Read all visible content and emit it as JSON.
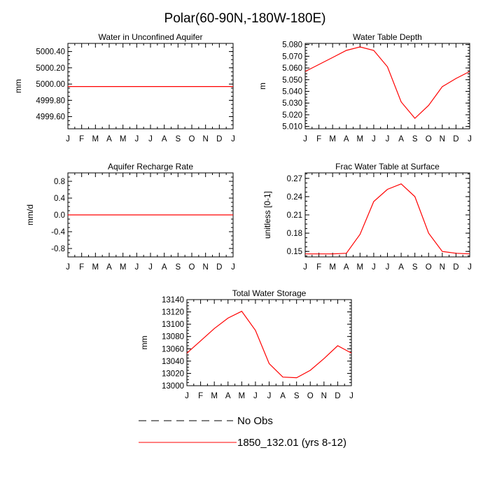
{
  "figure": {
    "title": "Polar(60-90N,-180W-180E)"
  },
  "months": [
    "J",
    "F",
    "M",
    "A",
    "M",
    "J",
    "J",
    "A",
    "S",
    "O",
    "N",
    "D",
    "J"
  ],
  "colors": {
    "model": "#ff0000",
    "obs": "#000000",
    "axis": "#000000"
  },
  "chart_data": [
    {
      "type": "line",
      "title": "Water in Unconfined Aquifer",
      "xlabel": "",
      "ylabel": "mm",
      "ylim": [
        4999.45,
        5000.5
      ],
      "yticks": [
        4999.6,
        4999.8,
        5000.0,
        5000.2,
        5000.4
      ],
      "ytick_labels": [
        "4999.60",
        "4999.80",
        "5000.00",
        "5000.20",
        "5000.40"
      ],
      "categories": [
        "J",
        "F",
        "M",
        "A",
        "M",
        "J",
        "J",
        "A",
        "S",
        "O",
        "N",
        "D",
        "J"
      ],
      "series": [
        {
          "name": "1850_132.01 (yrs 8-12)",
          "values": [
            4999.97,
            4999.97,
            4999.97,
            4999.97,
            4999.97,
            4999.97,
            4999.97,
            4999.97,
            4999.97,
            4999.97,
            4999.97,
            4999.97,
            4999.97
          ]
        }
      ]
    },
    {
      "type": "line",
      "title": "Water Table Depth",
      "xlabel": "",
      "ylabel": "m",
      "ylim": [
        5.008,
        5.081
      ],
      "yticks": [
        5.01,
        5.02,
        5.03,
        5.04,
        5.05,
        5.06,
        5.07,
        5.08
      ],
      "ytick_labels": [
        "5.010",
        "5.020",
        "5.030",
        "5.040",
        "5.050",
        "5.060",
        "5.070",
        "5.080"
      ],
      "categories": [
        "J",
        "F",
        "M",
        "A",
        "M",
        "J",
        "J",
        "A",
        "S",
        "O",
        "N",
        "D",
        "J"
      ],
      "series": [
        {
          "name": "1850_132.01 (yrs 8-12)",
          "values": [
            5.057,
            5.063,
            5.069,
            5.075,
            5.078,
            5.075,
            5.061,
            5.031,
            5.017,
            5.028,
            5.044,
            5.051,
            5.057
          ]
        }
      ]
    },
    {
      "type": "line",
      "title": "Aquifer Recharge Rate",
      "xlabel": "",
      "ylabel": "mm/d",
      "ylim": [
        -1.0,
        1.0
      ],
      "yticks": [
        -0.8,
        -0.4,
        0.0,
        0.4,
        0.8
      ],
      "ytick_labels": [
        "-0.8",
        "-0.4",
        "0.0",
        "0.4",
        "0.8"
      ],
      "categories": [
        "J",
        "F",
        "M",
        "A",
        "M",
        "J",
        "J",
        "A",
        "S",
        "O",
        "N",
        "D",
        "J"
      ],
      "series": [
        {
          "name": "1850_132.01 (yrs 8-12)",
          "values": [
            0,
            0,
            0,
            0,
            0,
            0,
            0,
            0,
            0,
            0,
            0,
            0,
            0
          ]
        }
      ]
    },
    {
      "type": "line",
      "title": "Frac Water Table at Surface",
      "xlabel": "",
      "ylabel": "unitless [0-1]",
      "ylim": [
        0.141,
        0.279
      ],
      "yticks": [
        0.15,
        0.18,
        0.21,
        0.24,
        0.27
      ],
      "ytick_labels": [
        "0.15",
        "0.18",
        "0.21",
        "0.24",
        "0.27"
      ],
      "categories": [
        "J",
        "F",
        "M",
        "A",
        "M",
        "J",
        "J",
        "A",
        "S",
        "O",
        "N",
        "D",
        "J"
      ],
      "series": [
        {
          "name": "1850_132.01 (yrs 8-12)",
          "values": [
            0.146,
            0.146,
            0.146,
            0.147,
            0.178,
            0.232,
            0.252,
            0.261,
            0.24,
            0.18,
            0.15,
            0.147,
            0.146
          ]
        }
      ]
    },
    {
      "type": "line",
      "title": "Total Water Storage",
      "xlabel": "",
      "ylabel": "mm",
      "ylim": [
        13000,
        13140
      ],
      "yticks": [
        13000,
        13020,
        13040,
        13060,
        13080,
        13100,
        13120,
        13140
      ],
      "ytick_labels": [
        "13000",
        "13020",
        "13040",
        "13060",
        "13080",
        "13100",
        "13120",
        "13140"
      ],
      "categories": [
        "J",
        "F",
        "M",
        "A",
        "M",
        "J",
        "J",
        "A",
        "S",
        "O",
        "N",
        "D",
        "J"
      ],
      "series": [
        {
          "name": "1850_132.01 (yrs 8-12)",
          "values": [
            13053,
            13073,
            13093,
            13110,
            13121,
            13090,
            13036,
            13014,
            13013,
            13025,
            13044,
            13065,
            13053
          ]
        }
      ]
    }
  ],
  "legend": {
    "items": [
      {
        "label": "No Obs",
        "style": "dashed",
        "color": "#000000"
      },
      {
        "label": "1850_132.01 (yrs 8-12)",
        "style": "solid",
        "color": "#ff0000"
      }
    ]
  }
}
